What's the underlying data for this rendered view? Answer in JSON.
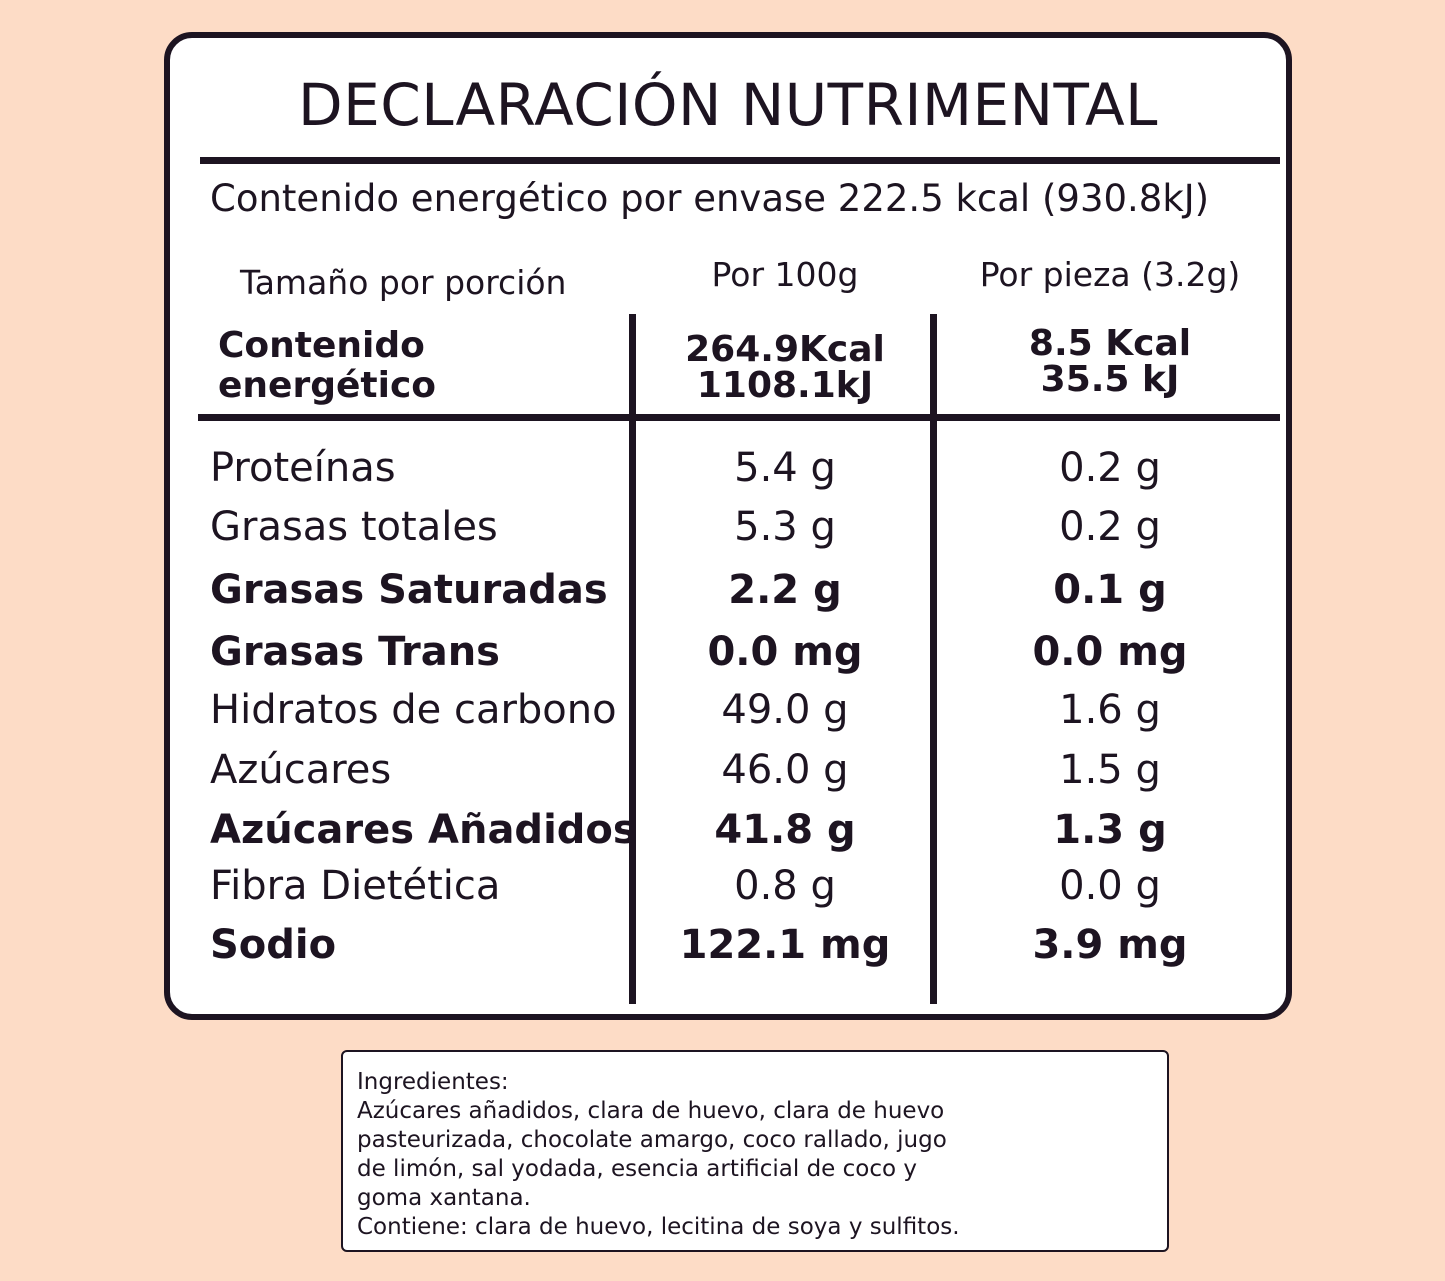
{
  "label": {
    "title": "DECLARACIÓN NUTRIMENTAL",
    "energy_per_package": "Contenido energético por envase 222.5 kcal (930.8kJ)",
    "serving_size_label": "Tamaño por porción",
    "col_per_100g": "Por 100g",
    "col_per_piece": "Por pieza (3.2g)",
    "energy_label_line1": "Contenido",
    "energy_label_line2": "energético",
    "energy_100g_kcal": "264.9Kcal",
    "energy_100g_kj": "1108.1kJ",
    "energy_piece_kcal": "8.5 Kcal",
    "energy_piece_kj": "35.5 kJ"
  },
  "nutrients": [
    {
      "name": "Proteínas",
      "per_100g": "5.4 g",
      "per_piece": "0.2 g",
      "bold": false
    },
    {
      "name": "Grasas totales",
      "per_100g": "5.3 g",
      "per_piece": "0.2 g",
      "bold": false
    },
    {
      "name": "Grasas Saturadas",
      "per_100g": "2.2 g",
      "per_piece": "0.1 g",
      "bold": true
    },
    {
      "name": "Grasas Trans",
      "per_100g": "0.0 mg",
      "per_piece": "0.0 mg",
      "bold": true
    },
    {
      "name": "Hidratos de carbono",
      "per_100g": "49.0 g",
      "per_piece": "1.6 g",
      "bold": false
    },
    {
      "name": "Azúcares",
      "per_100g": "46.0 g",
      "per_piece": "1.5 g",
      "bold": false
    },
    {
      "name": "Azúcares Añadidos",
      "per_100g": "41.8 g",
      "per_piece": "1.3 g",
      "bold": true
    },
    {
      "name": "Fibra Dietética",
      "per_100g": "0.8 g",
      "per_piece": "0.0 g",
      "bold": false
    },
    {
      "name": "Sodio",
      "per_100g": "122.1 mg",
      "per_piece": "3.9 mg",
      "bold": true
    }
  ],
  "ingredients": {
    "lines": [
      "Ingredientes:",
      "Azúcares añadidos, clara de huevo, clara de huevo",
      "pasteurizada, chocolate amargo, coco rallado, jugo",
      "de limón, sal yodada, esencia artificial de coco y",
      "goma xantana.",
      "Contiene: clara de huevo, lecitina de soya y sulfitos."
    ]
  },
  "colors": {
    "background": "#fddcc6",
    "ink": "#1d1421",
    "panel": "#ffffff"
  }
}
